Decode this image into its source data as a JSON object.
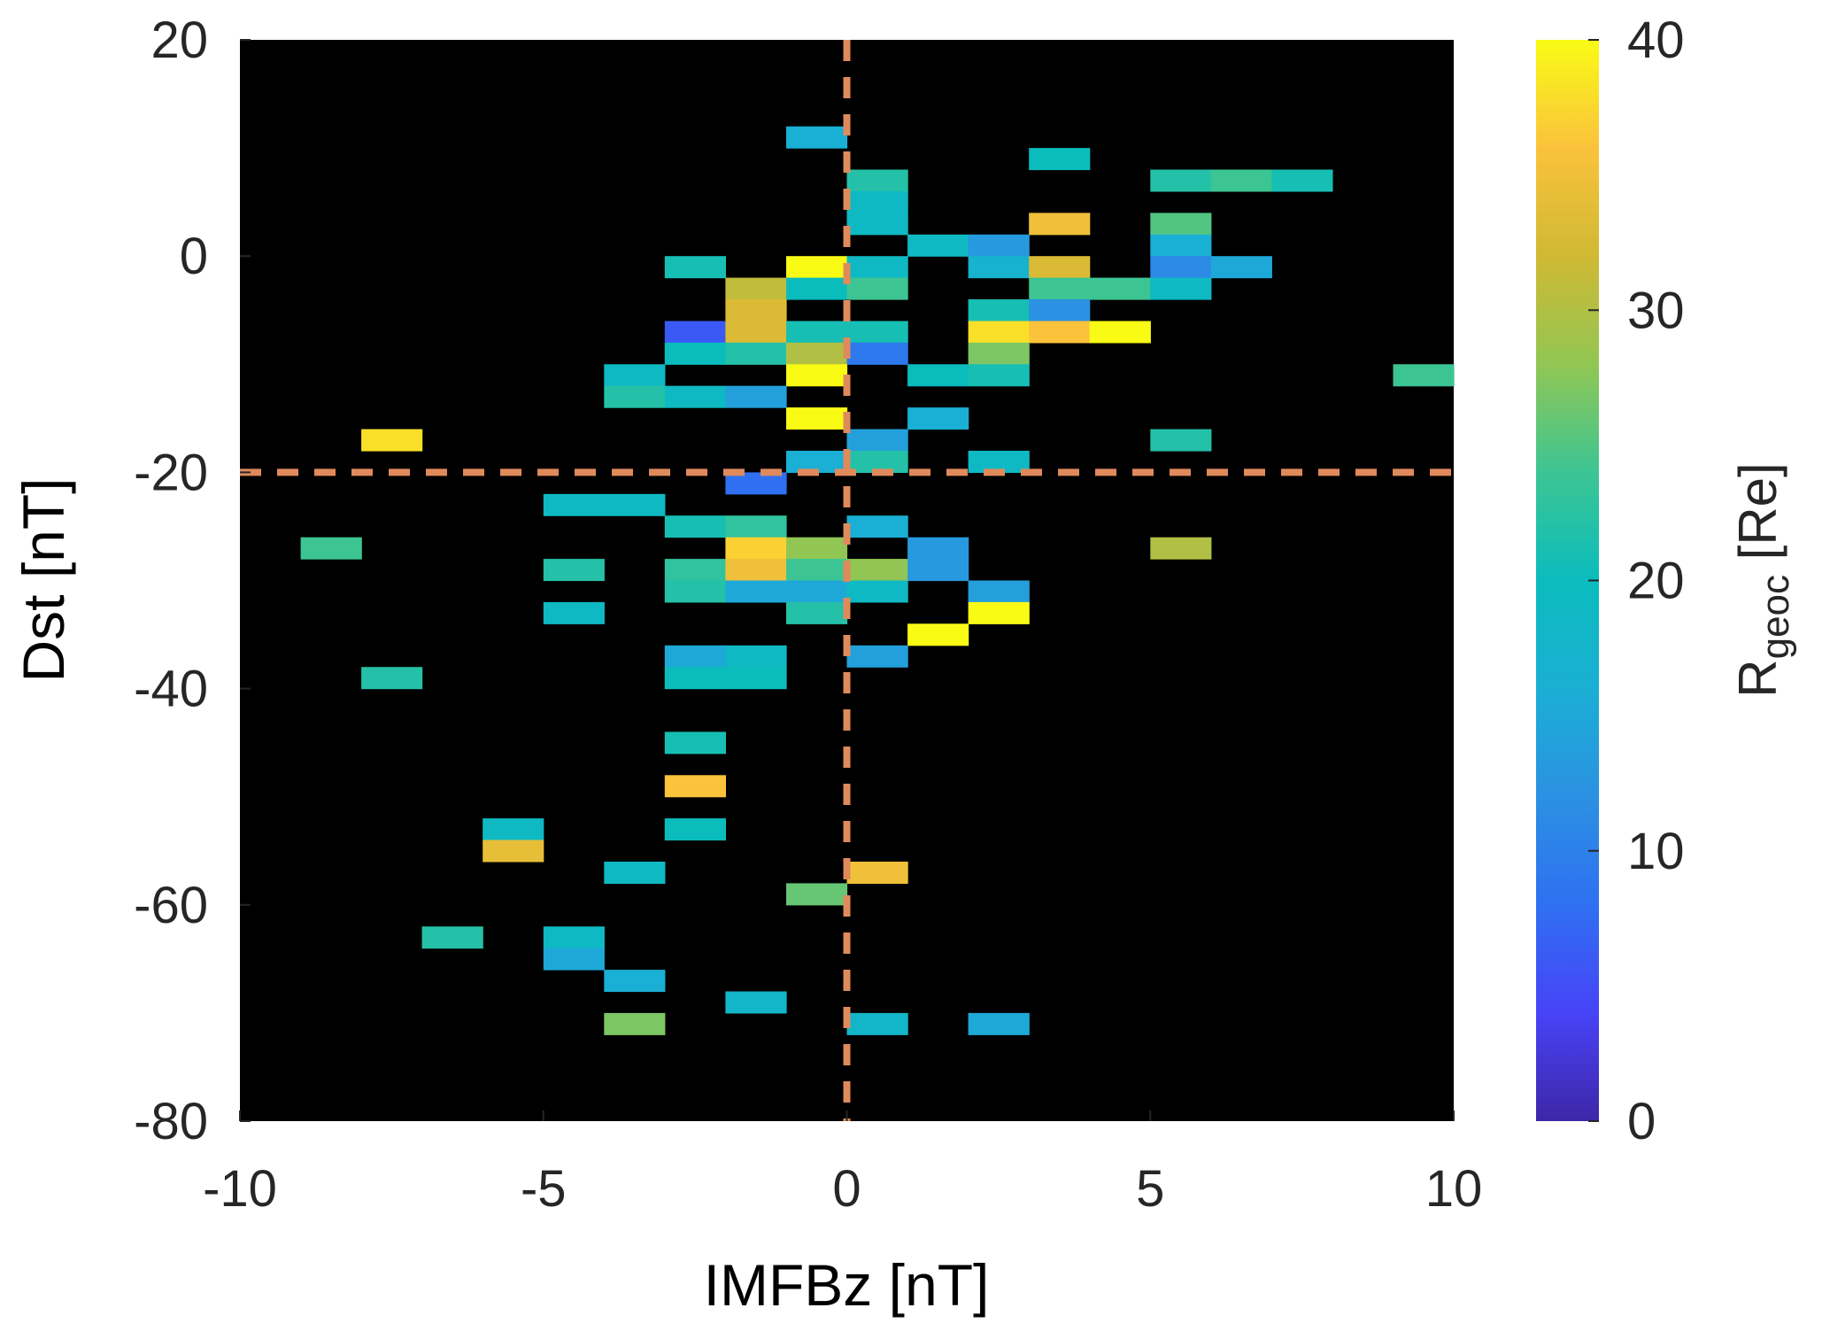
{
  "chart_data": {
    "type": "heatmap",
    "xlabel": "IMFBz [nT]",
    "ylabel": "Dst [nT]",
    "xlim": [
      -10,
      10
    ],
    "ylim": [
      -80,
      20
    ],
    "x_ticks": [
      -10,
      -5,
      0,
      5,
      10
    ],
    "y_ticks": [
      -80,
      -60,
      -40,
      -20,
      0,
      20
    ],
    "x_tick_labels": [
      "-10",
      "-5",
      "0",
      "5",
      "10"
    ],
    "y_tick_labels": [
      "-80",
      "-60",
      "-40",
      "-20",
      "0",
      "20"
    ],
    "bin_width_x": 1,
    "bin_height_y": 2,
    "background": "#000000",
    "reference_lines": [
      {
        "orientation": "vertical",
        "value": 0,
        "color": "#e08a5c",
        "style": "dashed"
      },
      {
        "orientation": "horizontal",
        "value": -20,
        "color": "#e08a5c",
        "style": "dashed"
      }
    ],
    "colorbar": {
      "label_main": "R",
      "label_sub": "geoc",
      "label_unit": " [Re]",
      "range": [
        0,
        40
      ],
      "ticks": [
        0,
        10,
        20,
        30,
        40
      ],
      "tick_labels": [
        "0",
        "10",
        "20",
        "30",
        "40"
      ],
      "colormap": "parula"
    },
    "cells": [
      {
        "x": -1,
        "y": 10,
        "v": 16
      },
      {
        "x": 3,
        "y": 8,
        "v": 20
      },
      {
        "x": 0,
        "y": 6,
        "v": 22
      },
      {
        "x": 5,
        "y": 6,
        "v": 22
      },
      {
        "x": 6,
        "y": 6,
        "v": 24
      },
      {
        "x": 7,
        "y": 6,
        "v": 21
      },
      {
        "x": 0,
        "y": 4,
        "v": 19
      },
      {
        "x": 0,
        "y": 2,
        "v": 19
      },
      {
        "x": 3,
        "y": 2,
        "v": 35
      },
      {
        "x": 5,
        "y": 2,
        "v": 25
      },
      {
        "x": 1,
        "y": 0,
        "v": 19
      },
      {
        "x": 2,
        "y": 0,
        "v": 13
      },
      {
        "x": 5,
        "y": 0,
        "v": 16
      },
      {
        "x": -3,
        "y": -2,
        "v": 21
      },
      {
        "x": -1,
        "y": -2,
        "v": 40
      },
      {
        "x": 0,
        "y": -2,
        "v": 19
      },
      {
        "x": 2,
        "y": -2,
        "v": 17
      },
      {
        "x": 3,
        "y": -2,
        "v": 33
      },
      {
        "x": 5,
        "y": -2,
        "v": 11
      },
      {
        "x": 6,
        "y": -2,
        "v": 15
      },
      {
        "x": -2,
        "y": -4,
        "v": 31
      },
      {
        "x": -1,
        "y": -4,
        "v": 20
      },
      {
        "x": 0,
        "y": -4,
        "v": 24
      },
      {
        "x": 3,
        "y": -4,
        "v": 24
      },
      {
        "x": 4,
        "y": -4,
        "v": 24
      },
      {
        "x": 5,
        "y": -4,
        "v": 19
      },
      {
        "x": -2,
        "y": -6,
        "v": 33
      },
      {
        "x": 2,
        "y": -6,
        "v": 21
      },
      {
        "x": 3,
        "y": -6,
        "v": 12
      },
      {
        "x": -3,
        "y": -8,
        "v": 6
      },
      {
        "x": -2,
        "y": -8,
        "v": 33
      },
      {
        "x": -1,
        "y": -8,
        "v": 21
      },
      {
        "x": 0,
        "y": -8,
        "v": 21
      },
      {
        "x": 2,
        "y": -8,
        "v": 38
      },
      {
        "x": 3,
        "y": -8,
        "v": 36
      },
      {
        "x": 4,
        "y": -8,
        "v": 40
      },
      {
        "x": -3,
        "y": -10,
        "v": 20
      },
      {
        "x": -2,
        "y": -10,
        "v": 22
      },
      {
        "x": -1,
        "y": -10,
        "v": 30
      },
      {
        "x": 0,
        "y": -10,
        "v": 9
      },
      {
        "x": 2,
        "y": -10,
        "v": 27
      },
      {
        "x": -4,
        "y": -12,
        "v": 19
      },
      {
        "x": -1,
        "y": -12,
        "v": 40
      },
      {
        "x": 1,
        "y": -12,
        "v": 20
      },
      {
        "x": 2,
        "y": -12,
        "v": 21
      },
      {
        "x": 9,
        "y": -12,
        "v": 24
      },
      {
        "x": -4,
        "y": -14,
        "v": 22
      },
      {
        "x": -3,
        "y": -14,
        "v": 19
      },
      {
        "x": -2,
        "y": -14,
        "v": 14
      },
      {
        "x": -1,
        "y": -16,
        "v": 40
      },
      {
        "x": 1,
        "y": -16,
        "v": 16
      },
      {
        "x": -8,
        "y": -18,
        "v": 38
      },
      {
        "x": 0,
        "y": -18,
        "v": 14
      },
      {
        "x": 5,
        "y": -18,
        "v": 22
      },
      {
        "x": -1,
        "y": -20,
        "v": 16
      },
      {
        "x": 0,
        "y": -20,
        "v": 22
      },
      {
        "x": 2,
        "y": -20,
        "v": 19
      },
      {
        "x": -2,
        "y": -22,
        "v": 8
      },
      {
        "x": -5,
        "y": -24,
        "v": 19
      },
      {
        "x": -4,
        "y": -24,
        "v": 19
      },
      {
        "x": -3,
        "y": -26,
        "v": 21
      },
      {
        "x": -2,
        "y": -26,
        "v": 23
      },
      {
        "x": 0,
        "y": -26,
        "v": 16
      },
      {
        "x": -9,
        "y": -28,
        "v": 24
      },
      {
        "x": -2,
        "y": -28,
        "v": 37
      },
      {
        "x": -1,
        "y": -28,
        "v": 28
      },
      {
        "x": 1,
        "y": -28,
        "v": 13
      },
      {
        "x": 5,
        "y": -28,
        "v": 30
      },
      {
        "x": -5,
        "y": -30,
        "v": 22
      },
      {
        "x": -3,
        "y": -30,
        "v": 23
      },
      {
        "x": -2,
        "y": -30,
        "v": 35
      },
      {
        "x": -1,
        "y": -30,
        "v": 24
      },
      {
        "x": 0,
        "y": -30,
        "v": 28
      },
      {
        "x": 1,
        "y": -30,
        "v": 13
      },
      {
        "x": -3,
        "y": -32,
        "v": 22
      },
      {
        "x": -2,
        "y": -32,
        "v": 15
      },
      {
        "x": -1,
        "y": -32,
        "v": 15
      },
      {
        "x": 0,
        "y": -32,
        "v": 19
      },
      {
        "x": 2,
        "y": -32,
        "v": 14
      },
      {
        "x": -5,
        "y": -34,
        "v": 19
      },
      {
        "x": -1,
        "y": -34,
        "v": 22
      },
      {
        "x": 2,
        "y": -34,
        "v": 40
      },
      {
        "x": 1,
        "y": -36,
        "v": 40
      },
      {
        "x": -3,
        "y": -38,
        "v": 15
      },
      {
        "x": -2,
        "y": -38,
        "v": 19
      },
      {
        "x": 0,
        "y": -38,
        "v": 14
      },
      {
        "x": -8,
        "y": -40,
        "v": 22
      },
      {
        "x": -3,
        "y": -40,
        "v": 20
      },
      {
        "x": -2,
        "y": -40,
        "v": 20
      },
      {
        "x": -3,
        "y": -46,
        "v": 21
      },
      {
        "x": -3,
        "y": -50,
        "v": 36
      },
      {
        "x": -3,
        "y": -54,
        "v": 20
      },
      {
        "x": -6,
        "y": -54,
        "v": 19
      },
      {
        "x": -6,
        "y": -56,
        "v": 34
      },
      {
        "x": -4,
        "y": -58,
        "v": 19
      },
      {
        "x": 0,
        "y": -58,
        "v": 35
      },
      {
        "x": -1,
        "y": -60,
        "v": 26
      },
      {
        "x": -7,
        "y": -64,
        "v": 22
      },
      {
        "x": -5,
        "y": -64,
        "v": 19
      },
      {
        "x": -5,
        "y": -66,
        "v": 15
      },
      {
        "x": -4,
        "y": -68,
        "v": 16
      },
      {
        "x": -2,
        "y": -70,
        "v": 18
      },
      {
        "x": -4,
        "y": -72,
        "v": 27
      },
      {
        "x": 0,
        "y": -72,
        "v": 18
      },
      {
        "x": 2,
        "y": -72,
        "v": 15
      }
    ]
  }
}
